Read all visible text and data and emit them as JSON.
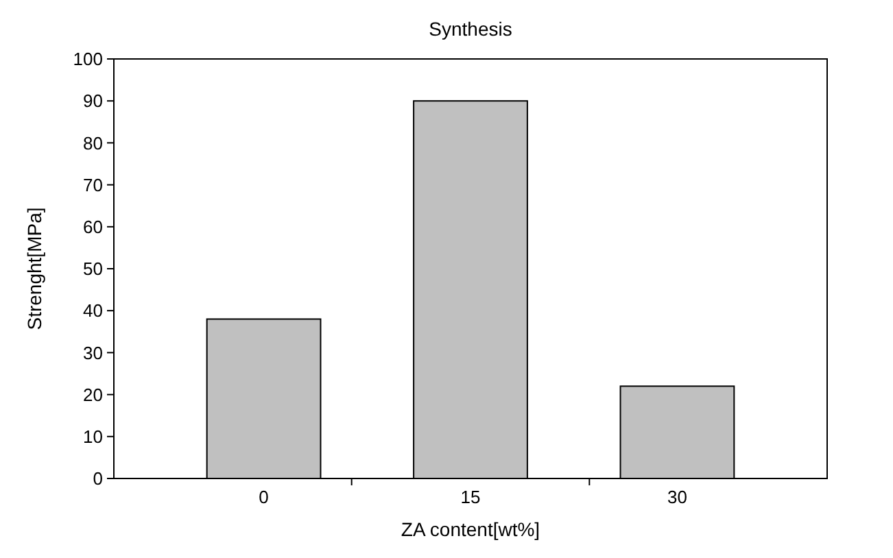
{
  "chart_data": {
    "type": "bar",
    "title": "Synthesis",
    "xlabel": "ZA content[wt%]",
    "ylabel": "Strenght[MPa]",
    "categories": [
      "0",
      "15",
      "30"
    ],
    "values": [
      38,
      90,
      22
    ],
    "color": "#c0c0c0",
    "ylim": [
      0,
      100
    ],
    "yticks": [
      0,
      10,
      20,
      30,
      40,
      50,
      60,
      70,
      80,
      90,
      100
    ],
    "grid": false
  }
}
